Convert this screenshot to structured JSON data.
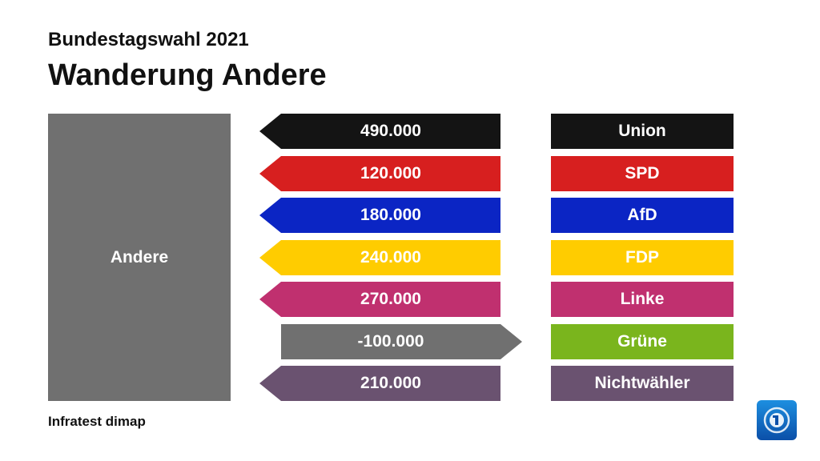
{
  "header": {
    "supertitle": "Bundestagswahl 2021",
    "title": "Wanderung Andere"
  },
  "footer": {
    "source": "Infratest dimap"
  },
  "chart_data": {
    "type": "bar",
    "source_party": "Andere",
    "categories": [
      "Union",
      "SPD",
      "AfD",
      "FDP",
      "Linke",
      "Grüne",
      "Nichtwähler"
    ],
    "values": [
      490000,
      120000,
      180000,
      240000,
      270000,
      -100000,
      210000
    ],
    "value_labels": [
      "490.000",
      "120.000",
      "180.000",
      "240.000",
      "270.000",
      "-100.000",
      "210.000"
    ],
    "colors": [
      "#141414",
      "#d71f1f",
      "#0b25c4",
      "#ffcc00",
      "#c0306f",
      "#7ab51d",
      "#6a5270"
    ],
    "negative_color": "#707070",
    "source_color": "#707070"
  },
  "logo": {
    "icon": "broadcaster-logo-icon"
  }
}
